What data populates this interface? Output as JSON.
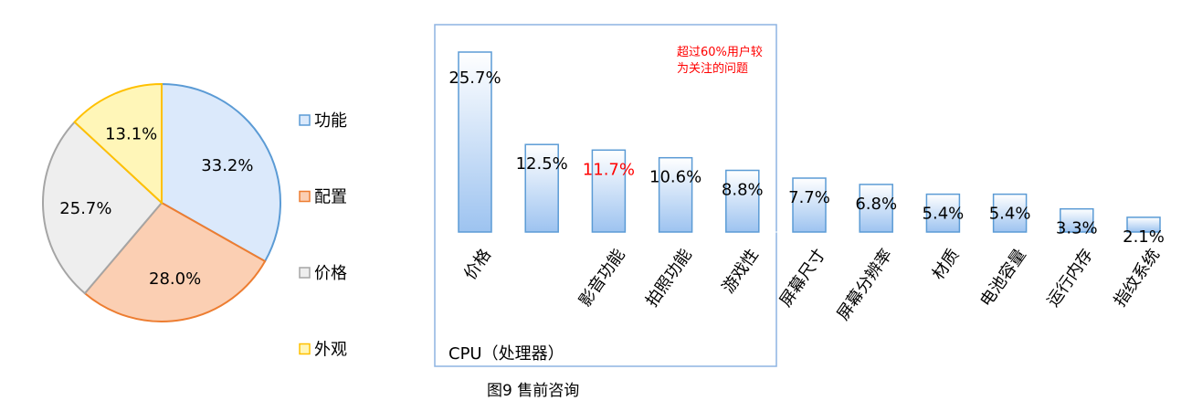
{
  "chart_data": [
    {
      "type": "pie",
      "slices": [
        {
          "label": "功能",
          "value": 33.2,
          "value_label": "33.2%",
          "color": "#dbe9fb",
          "stroke": "#5b9bd5"
        },
        {
          "label": "配置",
          "value": 28.0,
          "value_label": "28.0%",
          "color": "#fbcfb3",
          "stroke": "#ed7d31"
        },
        {
          "label": "价格",
          "value": 25.7,
          "value_label": "25.7%",
          "color": "#eeeeee",
          "stroke": "#a5a5a5"
        },
        {
          "label": "外观",
          "value": 13.1,
          "value_label": "13.1%",
          "color": "#fff6b8",
          "stroke": "#ffc000"
        }
      ],
      "legend_position": "right"
    },
    {
      "type": "bar",
      "categories": [
        "价格",
        "CPU（处理器）",
        "影音功能",
        "拍照功能",
        "游戏性",
        "屏幕尺寸",
        "屏幕分辨率",
        "材质",
        "电池容量",
        "运行内存",
        "指纹系统"
      ],
      "values": [
        25.7,
        12.5,
        11.7,
        10.6,
        8.8,
        7.7,
        6.8,
        5.4,
        5.4,
        3.3,
        2.1
      ],
      "value_labels": [
        "25.7%",
        "12.5%",
        "11.7%",
        "10.6%",
        "8.8%",
        "7.7%",
        "6.8%",
        "5.4%",
        "5.4%",
        "3.3%",
        "2.1%"
      ],
      "highlight_index": 2,
      "highlight_color": "#ff0000",
      "bar_fill_top": "#ffffff",
      "bar_fill_bottom": "#9dc3f0",
      "bar_stroke": "#5b9bd5",
      "annotation": [
        "超过60%用户较",
        "为关注的问题"
      ],
      "annotation_color": "#ff0000",
      "box_color": "#8db4e2",
      "ylim": [
        0,
        27
      ]
    }
  ],
  "caption": "图9  售前咨询"
}
